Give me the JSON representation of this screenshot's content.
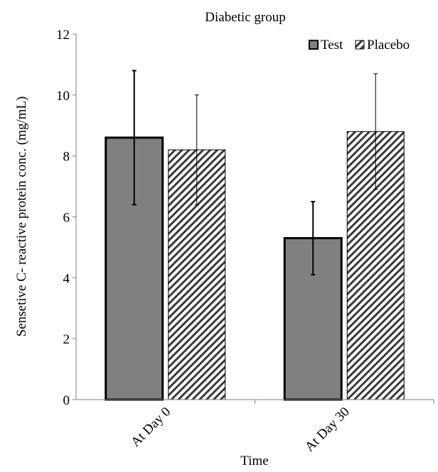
{
  "chart_data": {
    "type": "bar",
    "title": "Diabetic group",
    "xlabel": "Time",
    "ylabel": "Sensetive C- reactive protein conc. (mg/mL)",
    "categories": [
      "At Day 0",
      "At Day 30"
    ],
    "ylim": [
      0,
      12
    ],
    "yticks": [
      0,
      2,
      4,
      6,
      8,
      10,
      12
    ],
    "grid": false,
    "legend_position": "top-right",
    "series": [
      {
        "name": "Test",
        "values": [
          8.6,
          5.3
        ],
        "error_low": [
          6.4,
          4.1
        ],
        "error_high": [
          10.8,
          6.5
        ],
        "color": "#808080",
        "pattern": "solid"
      },
      {
        "name": "Placebo",
        "values": [
          8.2,
          8.8
        ],
        "error_low": [
          6.4,
          6.9
        ],
        "error_high": [
          10.0,
          10.7
        ],
        "color": "#ffffff",
        "pattern": "diagonal-hatch"
      }
    ]
  }
}
